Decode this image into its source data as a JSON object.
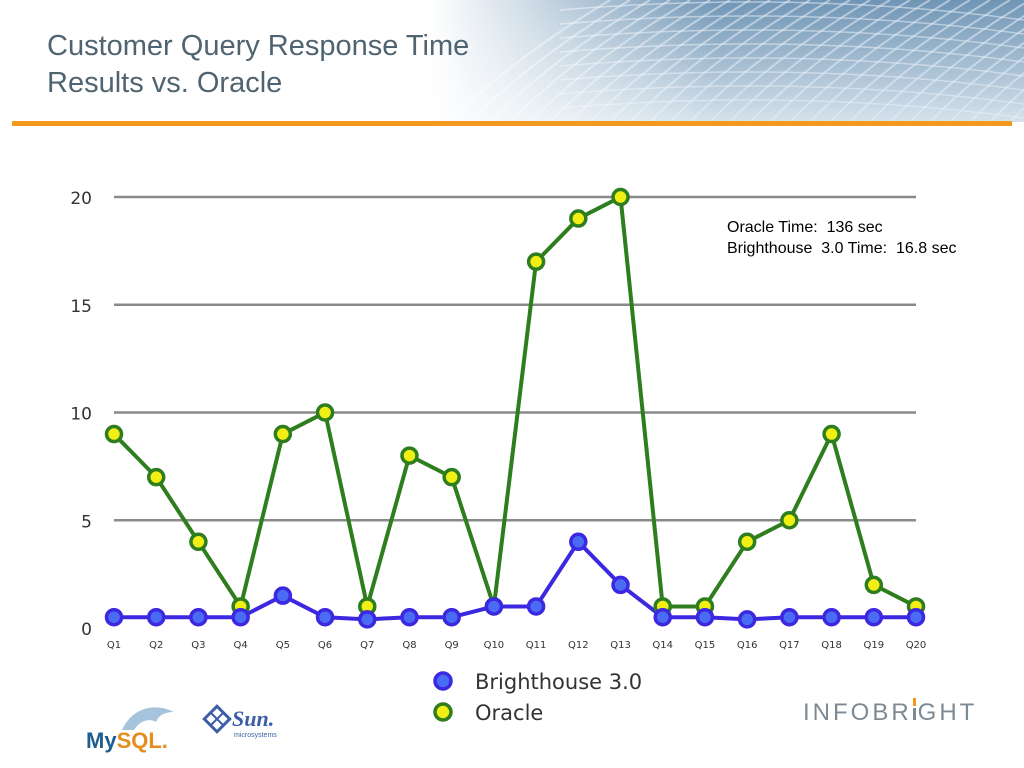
{
  "title": [
    "Customer Query Response Time",
    "Results vs. Oracle"
  ],
  "annotation": [
    "Oracle Time:  136 sec",
    "Brighthouse  3.0 Time:  16.8 sec"
  ],
  "logos": {
    "mysql": {
      "my": "My",
      "sql": "SQL."
    },
    "sun": {
      "name": "Sun.",
      "sub": "microsystems"
    },
    "infobright": {
      "part1": "INFOBR",
      "part2": "GHT"
    }
  },
  "colors": {
    "accent_bar": "#f39a1e",
    "title": "#4f6470",
    "oracle_line": "#2e7d1e",
    "oracle_marker": "#f2ef15",
    "brighthouse_line": "#3b28e0",
    "brighthouse_marker": "#4a6cf5"
  },
  "chart_data": {
    "type": "line",
    "title": "",
    "xlabel": "",
    "ylabel": "",
    "ylim": [
      0,
      20
    ],
    "yticks": [
      0,
      5,
      10,
      15,
      20
    ],
    "grid": true,
    "legend_placement": "bottom",
    "categories": [
      "Q1",
      "Q2",
      "Q3",
      "Q4",
      "Q5",
      "Q6",
      "Q7",
      "Q8",
      "Q9",
      "Q10",
      "Q11",
      "Q12",
      "Q13",
      "Q14",
      "Q15",
      "Q16",
      "Q17",
      "Q18",
      "Q19",
      "Q20"
    ],
    "series": [
      {
        "name": "Brighthouse 3.0",
        "values": [
          0.5,
          0.5,
          0.5,
          0.5,
          1.5,
          0.5,
          0.4,
          0.5,
          0.5,
          1,
          1,
          4,
          2,
          0.5,
          0.5,
          0.4,
          0.5,
          0.5,
          0.5,
          0.5
        ]
      },
      {
        "name": "Oracle",
        "values": [
          9,
          7,
          4,
          1,
          9,
          10,
          1,
          8,
          7,
          1,
          17,
          19,
          20,
          1,
          1,
          4,
          5,
          9,
          2,
          1
        ]
      }
    ]
  }
}
